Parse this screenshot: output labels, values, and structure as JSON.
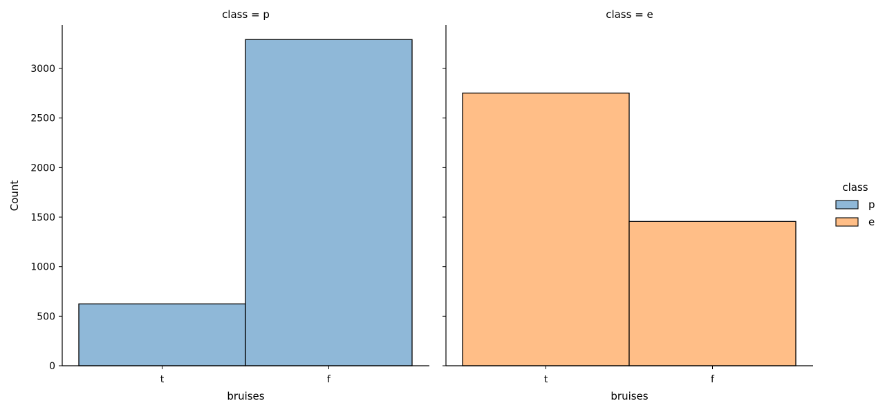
{
  "chart_data": {
    "type": "bar",
    "facet_variable": "class",
    "ylabel": "Count",
    "ylim": [
      0,
      3440
    ],
    "yticks": [
      0,
      500,
      1000,
      1500,
      2000,
      2500,
      3000
    ],
    "grid": false,
    "legend": {
      "title": "class",
      "placement": "right",
      "entries": [
        {
          "label": "p",
          "color": "#8fb8d8"
        },
        {
          "label": "e",
          "color": "#ffbe87"
        }
      ]
    },
    "panels": [
      {
        "title": "class = p",
        "xlabel": "bruises",
        "categories": [
          "t",
          "f"
        ],
        "values": [
          624,
          3292
        ],
        "color": "#8fb8d8"
      },
      {
        "title": "class = e",
        "xlabel": "bruises",
        "categories": [
          "t",
          "f"
        ],
        "values": [
          2752,
          1456
        ],
        "color": "#ffbe87"
      }
    ]
  }
}
